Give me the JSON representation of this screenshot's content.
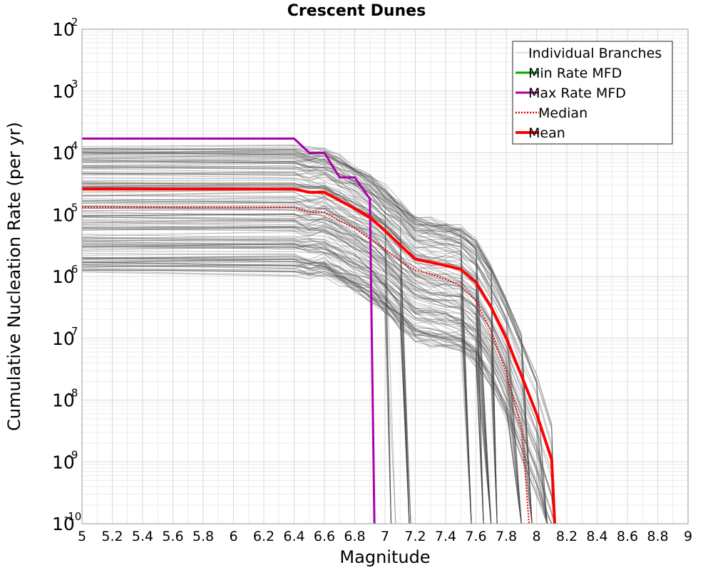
{
  "chart_data": {
    "type": "line",
    "title": "Crescent Dunes",
    "xlabel": "Magnitude",
    "ylabel": "Cumulative Nucleation Rate (per yr)",
    "xlim": [
      5,
      9
    ],
    "ylim": [
      1e-10,
      0.01
    ],
    "yscale": "log",
    "grid": true,
    "legend_position": "top-right",
    "x_ticks": [
      "5",
      "5.2",
      "5.4",
      "5.6",
      "5.8",
      "6",
      "6.2",
      "6.4",
      "6.6",
      "6.8",
      "7",
      "7.2",
      "7.4",
      "7.6",
      "7.8",
      "8",
      "8.2",
      "8.4",
      "8.6",
      "8.8",
      "9"
    ],
    "y_ticks": [
      {
        "base": "10",
        "exp": "-2"
      },
      {
        "base": "10",
        "exp": "-3"
      },
      {
        "base": "10",
        "exp": "-4"
      },
      {
        "base": "10",
        "exp": "-5"
      },
      {
        "base": "10",
        "exp": "-6"
      },
      {
        "base": "10",
        "exp": "-7"
      },
      {
        "base": "10",
        "exp": "-8"
      },
      {
        "base": "10",
        "exp": "-9"
      },
      {
        "base": "10",
        "exp": "-10"
      }
    ],
    "legend": [
      {
        "label": "Individual Branches",
        "color": "#c0c0c0",
        "style": "thin"
      },
      {
        "label": "Min Rate MFD",
        "color": "#00aa00",
        "style": "solid"
      },
      {
        "label": "Max Rate MFD",
        "color": "#aa00aa",
        "style": "solid"
      },
      {
        "label": "Median",
        "color": "#ee0000",
        "style": "dotted"
      },
      {
        "label": "Mean",
        "color": "#ff0000",
        "style": "thick"
      }
    ],
    "series": [
      {
        "name": "Max Rate MFD",
        "color": "#aa00aa",
        "x": [
          5.0,
          6.1,
          6.4,
          6.5,
          6.6,
          6.7,
          6.8,
          6.9,
          6.93
        ],
        "y": [
          0.00017,
          0.00017,
          0.00017,
          0.0001,
          0.0001,
          4e-05,
          4e-05,
          1.8e-05,
          1e-10
        ]
      },
      {
        "name": "Median",
        "color": "#ee0000",
        "x": [
          5.0,
          6.1,
          6.4,
          6.5,
          6.6,
          6.7,
          6.8,
          6.9,
          7.0,
          7.1,
          7.2,
          7.3,
          7.4,
          7.5,
          7.6,
          7.7,
          7.8,
          7.9,
          7.92,
          7.95
        ],
        "y": [
          1.3e-05,
          1.3e-05,
          1.3e-05,
          1.1e-05,
          1.1e-05,
          8e-06,
          6e-06,
          4e-06,
          2.8e-06,
          1.8e-06,
          1.25e-06,
          1.1e-06,
          9e-07,
          7e-07,
          4e-07,
          1.3e-07,
          2.8e-08,
          3.5e-09,
          1e-09,
          1e-10
        ]
      },
      {
        "name": "Mean",
        "color": "#ff0000",
        "x": [
          5.0,
          6.1,
          6.4,
          6.5,
          6.6,
          6.7,
          6.8,
          6.9,
          7.0,
          7.1,
          7.2,
          7.3,
          7.4,
          7.5,
          7.6,
          7.7,
          7.8,
          7.9,
          8.0,
          8.1,
          8.12
        ],
        "y": [
          2.6e-05,
          2.6e-05,
          2.6e-05,
          2.3e-05,
          2.3e-05,
          1.7e-05,
          1.25e-05,
          9e-06,
          5.5e-06,
          3.2e-06,
          1.9e-06,
          1.7e-06,
          1.5e-06,
          1.3e-06,
          8e-07,
          3.2e-07,
          1e-07,
          2.5e-08,
          6e-09,
          1.1e-09,
          1e-10
        ]
      }
    ]
  }
}
